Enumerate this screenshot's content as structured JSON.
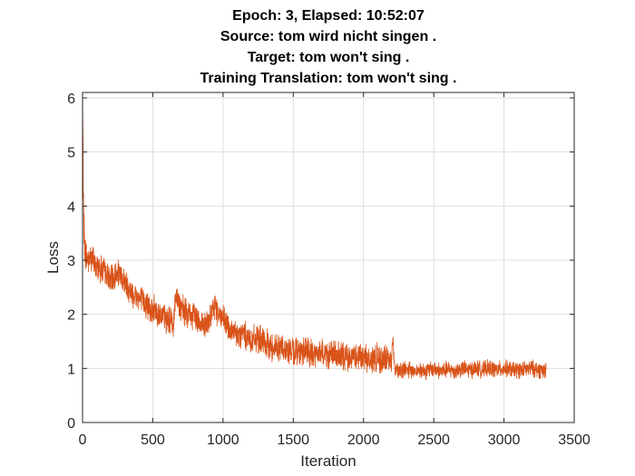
{
  "chart_data": {
    "type": "line",
    "title_lines": [
      "Epoch: 3, Elapsed: 10:52:07",
      "Source: tom wird nicht singen .",
      "Target: tom won't sing .",
      "Training Translation: tom won't sing ."
    ],
    "xlabel": "Iteration",
    "ylabel": "Loss",
    "xlim": [
      0,
      3500
    ],
    "ylim": [
      0,
      6.1
    ],
    "xticks": [
      "0",
      "500",
      "1000",
      "1500",
      "2000",
      "2500",
      "3000",
      "3500"
    ],
    "yticks": [
      "0",
      "1",
      "2",
      "3",
      "4",
      "5",
      "6"
    ],
    "grid": true,
    "series": [
      {
        "color": "#D95319",
        "x": [
          0,
          5,
          10,
          20,
          40,
          60,
          100,
          150,
          200,
          250,
          300,
          350,
          400,
          450,
          500,
          550,
          600,
          650,
          660,
          680,
          700,
          750,
          800,
          850,
          900,
          940,
          950,
          1000,
          1050,
          1100,
          1150,
          1200,
          1250,
          1300,
          1350,
          1400,
          1450,
          1500,
          1550,
          1600,
          1650,
          1700,
          1750,
          1800,
          1850,
          1900,
          1950,
          2000,
          2050,
          2100,
          2150,
          2200,
          2210,
          2220,
          2250,
          2300,
          2350,
          2400,
          2450,
          2500,
          2550,
          2600,
          2650,
          2700,
          2750,
          2800,
          2850,
          2900,
          2950,
          3000,
          3050,
          3100,
          3150,
          3200,
          3250,
          3300
        ],
        "y": [
          6.0,
          4.5,
          3.6,
          3.1,
          3.0,
          3.05,
          2.9,
          2.8,
          2.6,
          2.75,
          2.6,
          2.4,
          2.3,
          2.2,
          2.1,
          2.0,
          1.9,
          1.85,
          2.35,
          2.3,
          2.1,
          2.0,
          1.95,
          1.85,
          1.8,
          2.2,
          2.1,
          1.9,
          1.7,
          1.6,
          1.65,
          1.5,
          1.55,
          1.45,
          1.4,
          1.4,
          1.35,
          1.3,
          1.35,
          1.3,
          1.25,
          1.3,
          1.25,
          1.25,
          1.2,
          1.25,
          1.2,
          1.2,
          1.15,
          1.2,
          1.15,
          1.2,
          1.6,
          1.0,
          0.95,
          1.0,
          0.95,
          0.98,
          0.95,
          1.0,
          0.95,
          0.98,
          0.95,
          1.0,
          0.97,
          1.0,
          0.98,
          1.0,
          0.97,
          1.0,
          0.98,
          0.97,
          0.98,
          1.0,
          0.97,
          0.98
        ]
      }
    ]
  }
}
